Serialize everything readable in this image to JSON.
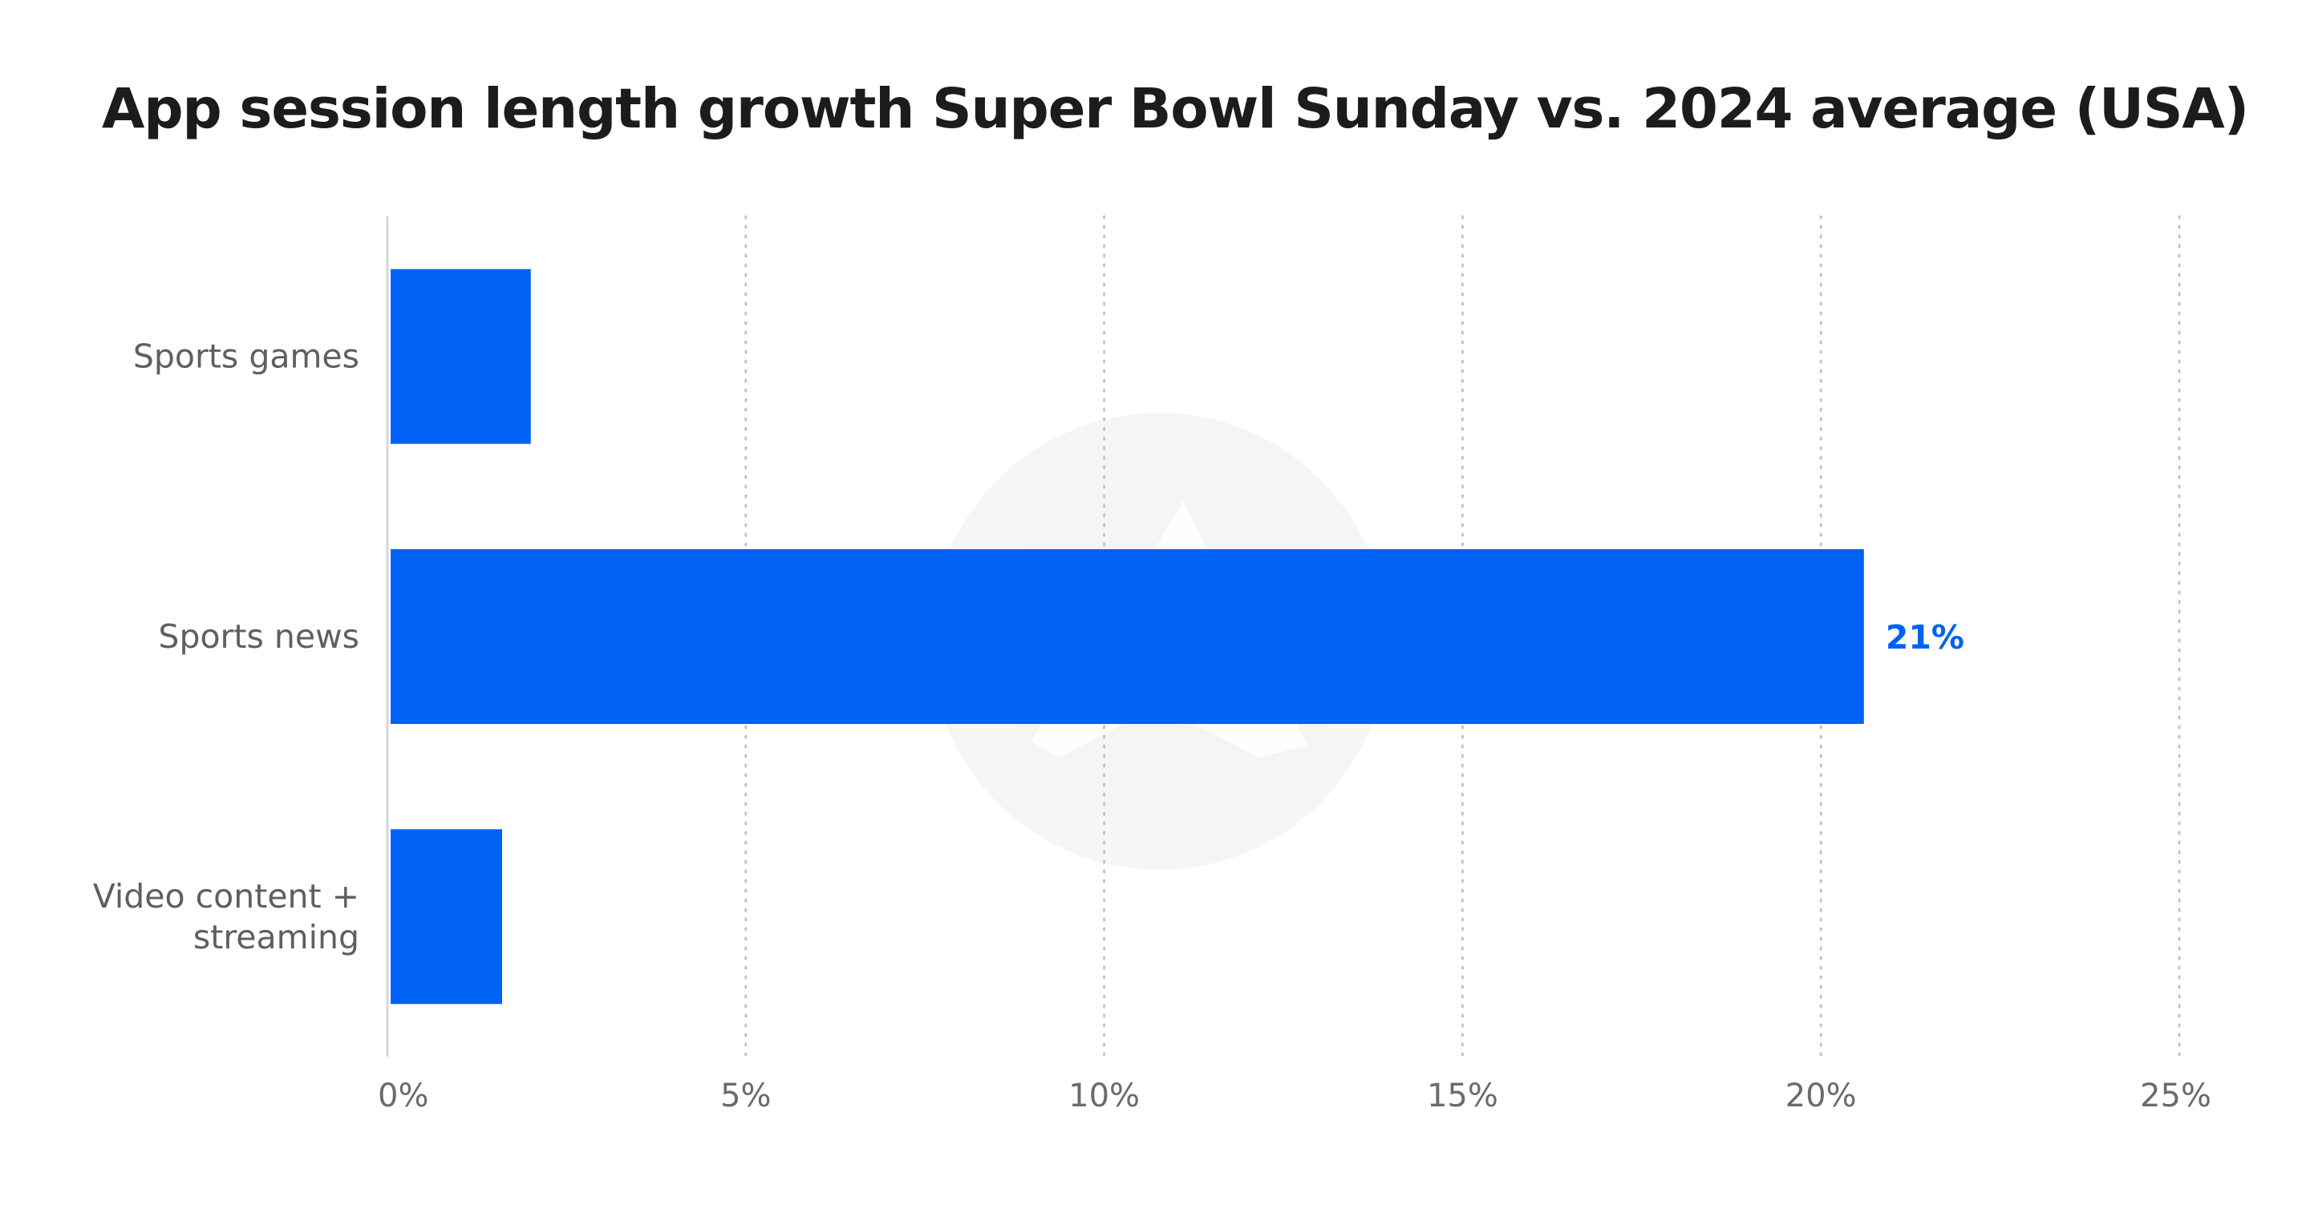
{
  "chart_data": {
    "type": "bar",
    "orientation": "horizontal",
    "title": "App session length growth Super Bowl Sunday vs. 2024 average (USA)",
    "xlabel": "",
    "ylabel": "",
    "categories": [
      [
        "Sports games"
      ],
      [
        "Sports news"
      ],
      [
        "Video content +",
        "streaming"
      ]
    ],
    "values": [
      2.0,
      20.6,
      1.6
    ],
    "data_labels": [
      null,
      "21%",
      null
    ],
    "xlim": [
      0,
      25
    ],
    "ticks": [
      0,
      5,
      10,
      15,
      20,
      25
    ],
    "tick_labels": [
      "0%",
      "5%",
      "10%",
      "15%",
      "20%",
      "25%"
    ],
    "grid": "vertical dotted",
    "bar_color": "#0062f5",
    "label_color": "#0062f5"
  }
}
